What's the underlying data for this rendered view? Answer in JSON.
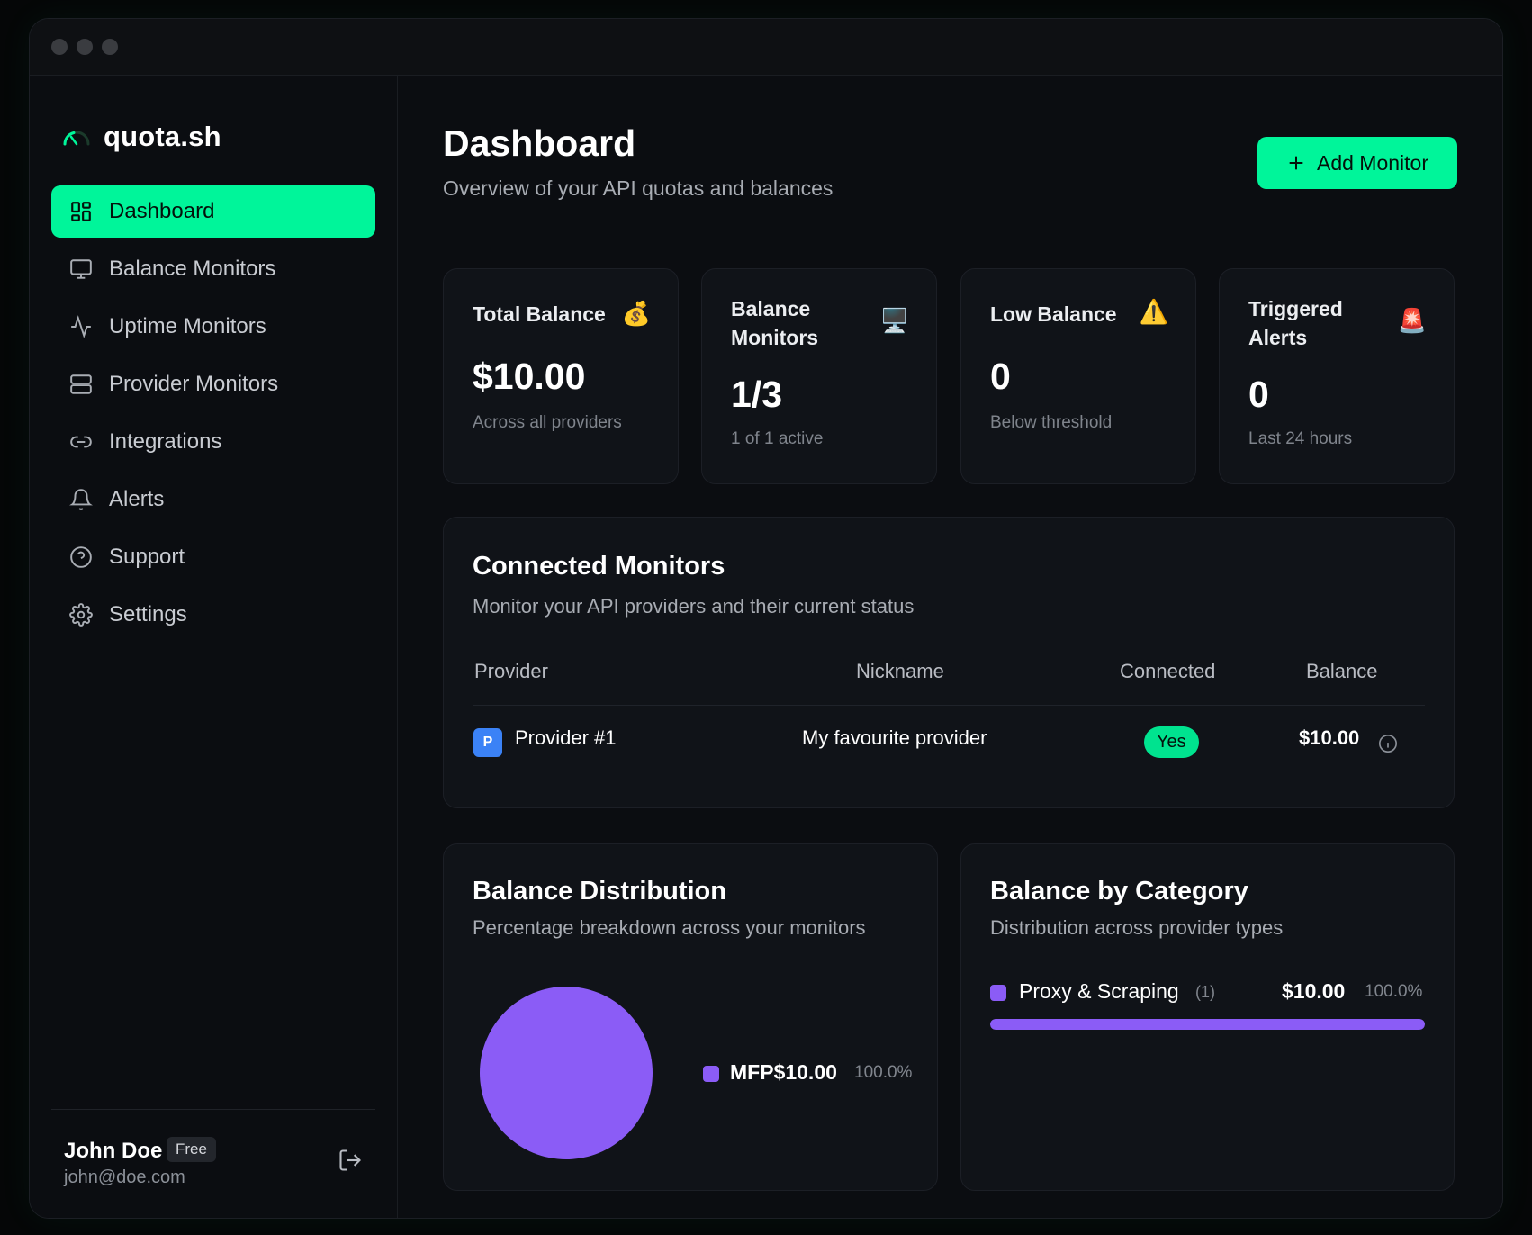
{
  "brand": {
    "name": "quota.sh"
  },
  "sidebar": {
    "items": [
      {
        "label": "Dashboard",
        "icon": "grid-icon",
        "active": true
      },
      {
        "label": "Balance Monitors",
        "icon": "monitor-icon"
      },
      {
        "label": "Uptime Monitors",
        "icon": "activity-icon"
      },
      {
        "label": "Provider Monitors",
        "icon": "server-icon"
      },
      {
        "label": "Integrations",
        "icon": "link-icon"
      },
      {
        "label": "Alerts",
        "icon": "bell-icon"
      },
      {
        "label": "Support",
        "icon": "help-circle-icon"
      },
      {
        "label": "Settings",
        "icon": "gear-icon"
      }
    ]
  },
  "user": {
    "name": "John Doe",
    "plan": "Free",
    "email": "john@doe.com"
  },
  "header": {
    "title": "Dashboard",
    "subtitle": "Overview of your API quotas and balances",
    "add_button": "Add Monitor"
  },
  "stats": [
    {
      "label": "Total Balance",
      "icon": "money-bag-icon",
      "value": "$10.00",
      "sub": "Across all providers"
    },
    {
      "label": "Balance Monitors",
      "icon": "desktop-computer-icon",
      "value": "1/3",
      "sub": "1 of 1 active"
    },
    {
      "label": "Low Balance",
      "icon": "warning-icon",
      "value": "0",
      "sub": "Below threshold"
    },
    {
      "label": "Triggered Alerts",
      "icon": "siren-icon",
      "value": "0",
      "sub": "Last 24 hours"
    }
  ],
  "monitors": {
    "title": "Connected Monitors",
    "subtitle": "Monitor your API providers and their current status",
    "columns": [
      "Provider",
      "Nickname",
      "Connected",
      "Balance"
    ],
    "rows": [
      {
        "badge": "P",
        "provider": "Provider #1",
        "nickname": "My favourite provider",
        "connected": "Yes",
        "balance": "$10.00"
      }
    ]
  },
  "distribution": {
    "title": "Balance Distribution",
    "subtitle": "Percentage breakdown across your monitors",
    "legend": [
      {
        "name": "MFP",
        "amount": "$10.00",
        "pct": "100.0%"
      }
    ]
  },
  "category": {
    "title": "Balance by Category",
    "subtitle": "Distribution across provider types",
    "items": [
      {
        "name": "Proxy & Scraping",
        "count": "(1)",
        "amount": "$10.00",
        "pct": "100.0%",
        "fraction": 1.0
      }
    ]
  },
  "chart_data": {
    "type": "pie",
    "categories": [
      "MFP"
    ],
    "values": [
      10.0
    ],
    "title": "Balance Distribution"
  },
  "colors": {
    "accent": "#00f59a",
    "series": "#8b5cf6",
    "provider_badge": "#3b82f6"
  }
}
